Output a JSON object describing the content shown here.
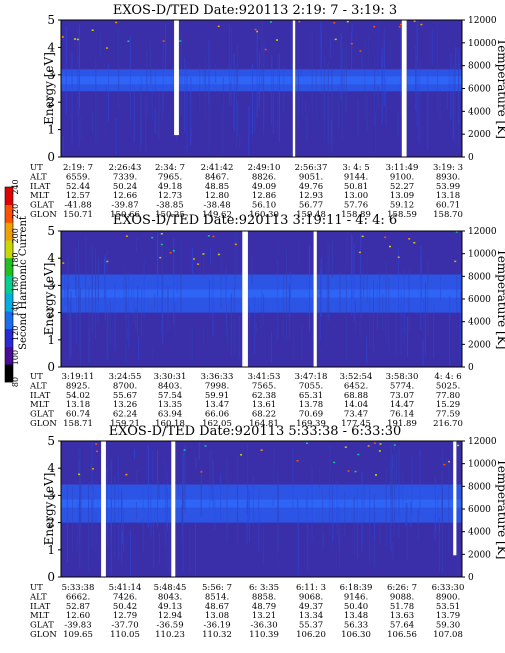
{
  "colors": {
    "background": "#3a2fa8",
    "band": "#2a5cf0",
    "band_core": "#2f6cff",
    "gap": "#ffffff",
    "colorbar": [
      "#000000",
      "#4a0a9a",
      "#2a2ad8",
      "#1a6cf0",
      "#00b0e0",
      "#00d090",
      "#20c020",
      "#c8d800",
      "#f0a000",
      "#ff5000",
      "#e00000"
    ]
  },
  "colorbar": {
    "label": "Second Harmonic Current",
    "ticks": [
      "240",
      "220",
      "200",
      "180",
      "160",
      "140",
      "120",
      "100",
      "80"
    ]
  },
  "row_labels": [
    "UT",
    "ALT",
    "ILAT",
    "MLT",
    "GLAT",
    "GLON"
  ],
  "chart_data": [
    {
      "type": "heatmap",
      "title": "EXOS-D/TED   Date:920113  2:19: 7 - 3:19: 3",
      "ylabel": "Energy [eV]",
      "y2label": "Temperature [K]",
      "ylim": [
        0,
        5
      ],
      "y_ticks": [
        0,
        1,
        2,
        3,
        4,
        5
      ],
      "y2lim": [
        0,
        12000
      ],
      "y2_ticks": [
        0,
        2000,
        4000,
        6000,
        8000,
        10000,
        12000
      ],
      "band_energy_ev": [
        2.4,
        3.2
      ],
      "gaps": [
        {
          "x": 0.282,
          "w": 0.012,
          "y0": 0.8,
          "y1": 5.1
        },
        {
          "x": 0.578,
          "w": 0.006,
          "y0": 0,
          "y1": 5.1
        },
        {
          "x": 0.85,
          "w": 0.012,
          "y0": 0,
          "y1": 5.1
        }
      ],
      "table": {
        "UT": [
          "2:19: 7",
          "2:26:43",
          "2:34: 7",
          "2:41:42",
          "2:49:10",
          "2:56:37",
          "3: 4: 5",
          "3:11:49",
          "3:19: 3"
        ],
        "ALT": [
          "6559.",
          "7339.",
          "7965.",
          "8467.",
          "8826.",
          "9051.",
          "9144.",
          "9100.",
          "8930."
        ],
        "ILAT": [
          "52.44",
          "50.24",
          "49.18",
          "48.85",
          "49.09",
          "49.76",
          "50.81",
          "52.27",
          "53.99"
        ],
        "MLT": [
          "12.57",
          "12.66",
          "12.73",
          "12.80",
          "12.86",
          "12.93",
          "13.00",
          "13.09",
          "13.18"
        ],
        "GLAT": [
          "-41.88",
          "-39.87",
          "-38.85",
          "-38.48",
          "56.10",
          "56.77",
          "57.76",
          "59.12",
          "60.71"
        ],
        "GLON": [
          "150.71",
          "150.66",
          "150.25",
          "149.62",
          "160.30",
          "159.48",
          "158.89",
          "158.59",
          "158.70"
        ]
      }
    },
    {
      "type": "heatmap",
      "title": "EXOS-D/TED   Date:920113  3:19:11 - 4: 4: 6",
      "ylabel": "Energy [eV]",
      "y2label": "Temperature [K]",
      "ylim": [
        0,
        5
      ],
      "y_ticks": [
        0,
        1,
        2,
        3,
        4,
        5
      ],
      "y2lim": [
        0,
        12000
      ],
      "y2_ticks": [
        0,
        2000,
        4000,
        6000,
        8000,
        10000,
        12000
      ],
      "band_energy_ev": [
        2.0,
        3.4
      ],
      "gaps": [
        {
          "x": 0.452,
          "w": 0.014,
          "y0": 0,
          "y1": 5.1
        },
        {
          "x": 0.63,
          "w": 0.008,
          "y0": 0,
          "y1": 5.1
        }
      ],
      "table": {
        "UT": [
          "3:19:11",
          "3:24:55",
          "3:30:31",
          "3:36:33",
          "3:41:53",
          "3:47:18",
          "3:52:54",
          "3:58:30",
          "4: 4: 6"
        ],
        "ALT": [
          "8925.",
          "8700.",
          "8403.",
          "7998.",
          "7565.",
          "7055.",
          "6452.",
          "5774.",
          "5025."
        ],
        "ILAT": [
          "54.02",
          "55.67",
          "57.54",
          "59.91",
          "62.38",
          "65.31",
          "68.88",
          "73.07",
          "77.80"
        ],
        "MLT": [
          "13.18",
          "13.26",
          "13.35",
          "13.47",
          "13.61",
          "13.78",
          "14.04",
          "14.47",
          "15.29"
        ],
        "GLAT": [
          "60.74",
          "62.24",
          "63.94",
          "66.06",
          "68.22",
          "70.69",
          "73.47",
          "76.14",
          "77.59"
        ],
        "GLON": [
          "158.71",
          "159.21",
          "160.18",
          "162.05",
          "164.81",
          "169.39",
          "177.45",
          "191.89",
          "216.70"
        ]
      }
    },
    {
      "type": "heatmap",
      "title": "EXOS-D/TED   Date:920113  5:33:38 - 6:33:30",
      "ylabel": "Energy [eV]",
      "y2label": "Temperature [K]",
      "ylim": [
        0,
        5
      ],
      "y_ticks": [
        0,
        1,
        2,
        3,
        4,
        5
      ],
      "y2lim": [
        0,
        12000
      ],
      "y2_ticks": [
        0,
        2000,
        4000,
        6000,
        8000,
        10000,
        12000
      ],
      "band_energy_ev": [
        2.0,
        3.4
      ],
      "gaps": [
        {
          "x": 0.1,
          "w": 0.012,
          "y0": 0,
          "y1": 5.1
        },
        {
          "x": 0.275,
          "w": 0.01,
          "y0": 0,
          "y1": 5.1
        },
        {
          "x": 0.978,
          "w": 0.008,
          "y0": 0.8,
          "y1": 5.1
        }
      ],
      "table": {
        "UT": [
          "5:33:38",
          "5:41:14",
          "5:48:45",
          "5:56: 7",
          "6: 3:35",
          "6:11: 3",
          "6:18:39",
          "6:26: 7",
          "6:33:30"
        ],
        "ALT": [
          "6662.",
          "7426.",
          "8043.",
          "8514.",
          "8858.",
          "9068.",
          "9146.",
          "9088.",
          "8900."
        ],
        "ILAT": [
          "52.87",
          "50.42",
          "49.13",
          "48.67",
          "48.79",
          "49.37",
          "50.40",
          "51.78",
          "53.51"
        ],
        "MLT": [
          "12.60",
          "12.79",
          "12.94",
          "13.08",
          "13.21",
          "13.34",
          "13.48",
          "13.63",
          "13.79"
        ],
        "GLAT": [
          "-39.83",
          "-37.70",
          "-36.59",
          "-36.19",
          "-36.30",
          "55.37",
          "56.33",
          "57.64",
          "59.30"
        ],
        "GLON": [
          "109.65",
          "110.05",
          "110.23",
          "110.32",
          "110.39",
          "106.20",
          "106.30",
          "106.56",
          "107.08"
        ]
      }
    }
  ]
}
